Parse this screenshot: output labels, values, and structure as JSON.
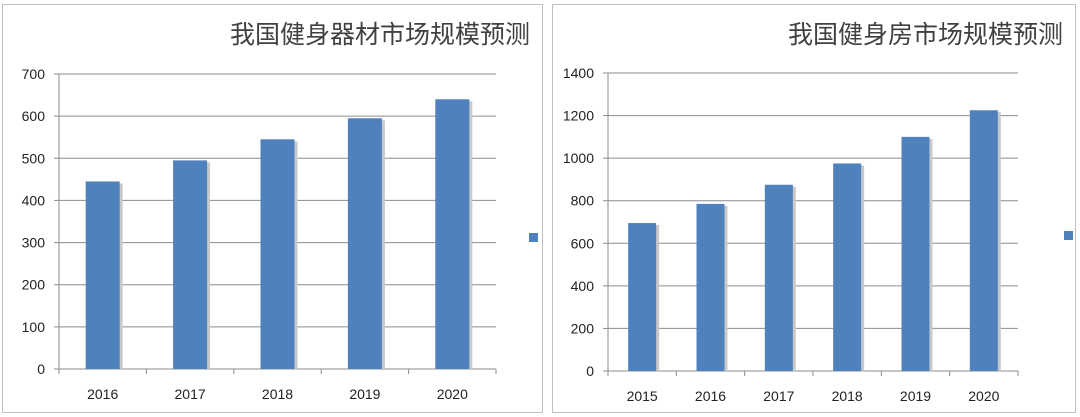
{
  "chart_data": [
    {
      "type": "bar",
      "title": "我国健身器材市场规模预测",
      "categories": [
        "2016",
        "2017",
        "2018",
        "2019",
        "2020"
      ],
      "values": [
        445,
        495,
        545,
        595,
        640
      ],
      "ylim": [
        0,
        700
      ],
      "yticks": [
        "0",
        "100",
        "200",
        "300",
        "400",
        "500",
        "600",
        "700"
      ],
      "xlabel": "",
      "ylabel": "",
      "grid": true,
      "legend": "right",
      "color": "#4f81bd"
    },
    {
      "type": "bar",
      "title": "我国健身房市场规模预测",
      "categories": [
        "2015",
        "2016",
        "2017",
        "2018",
        "2019",
        "2020"
      ],
      "values": [
        695,
        785,
        875,
        975,
        1100,
        1225
      ],
      "ylim": [
        0,
        1400
      ],
      "yticks": [
        "0",
        "200",
        "400",
        "600",
        "800",
        "1000",
        "1200",
        "1400"
      ],
      "xlabel": "",
      "ylabel": "",
      "grid": true,
      "legend": "right",
      "color": "#4f81bd"
    }
  ]
}
